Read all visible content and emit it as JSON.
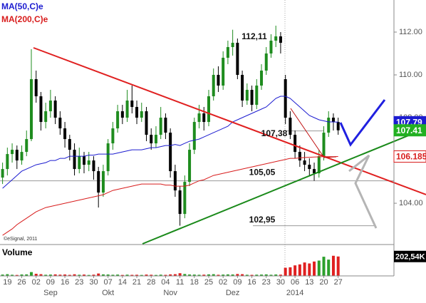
{
  "chart_data": {
    "type": "candlestick",
    "categories": [
      null,
      "19",
      null,
      null,
      "26",
      null,
      null,
      "02",
      null,
      null,
      "09",
      null,
      null,
      "16",
      null,
      null,
      "23",
      null,
      null,
      "30",
      null,
      null,
      "07",
      null,
      null,
      "14",
      null,
      null,
      "21",
      null,
      null,
      "28",
      null,
      null,
      "04",
      null,
      null,
      "11",
      null,
      null,
      "18",
      null,
      null,
      "25",
      null,
      null,
      "02",
      null,
      null,
      "09",
      null,
      null,
      "16",
      null,
      null,
      "23",
      null,
      null,
      "30",
      null,
      null,
      "06",
      null,
      null,
      "13",
      null,
      null,
      "20",
      null,
      null,
      "27"
    ],
    "months": [
      null,
      null,
      null,
      null,
      null,
      null,
      null,
      null,
      null,
      null,
      "Sep",
      null,
      null,
      null,
      null,
      null,
      null,
      null,
      null,
      null,
      null,
      null,
      "Okt",
      null,
      null,
      null,
      null,
      null,
      null,
      null,
      null,
      null,
      null,
      null,
      null,
      "Nov",
      null,
      null,
      null,
      null,
      null,
      null,
      null,
      null,
      null,
      null,
      null,
      null,
      "Dez",
      null,
      null,
      null,
      null,
      null,
      null,
      null,
      null,
      null,
      null,
      null,
      null,
      "2014",
      null,
      null,
      null,
      null,
      null,
      null,
      null,
      null,
      null
    ],
    "open": [
      105.2,
      105.6,
      106.3,
      106.5,
      106.0,
      106.4,
      107.0,
      109.8,
      109.0,
      107.8,
      108.3,
      108.8,
      108.0,
      107.5,
      107.0,
      106.5,
      105.6,
      106.2,
      105.8,
      106.0,
      105.5,
      104.5,
      105.5,
      106.8,
      107.5,
      108.3,
      108.0,
      108.8,
      108.5,
      108.0,
      108.3,
      107.2,
      106.8,
      107.2,
      108.0,
      107.3,
      105.5,
      104.6,
      103.5,
      105.0,
      106.5,
      107.8,
      108.2,
      107.8,
      109.0,
      110.0,
      109.5,
      110.8,
      111.3,
      111.5,
      110.0,
      108.8,
      109.3,
      108.6,
      109.5,
      110.2,
      111.0,
      111.6,
      111.8,
      109.8,
      108.0,
      107.2,
      106.4,
      106.0,
      105.8,
      105.6,
      105.4,
      106.2,
      107.3,
      108.0,
      107.8
    ],
    "high": [
      105.9,
      106.6,
      106.8,
      106.7,
      106.7,
      107.4,
      111.2,
      110.2,
      109.2,
      108.7,
      109.3,
      109.0,
      108.3,
      107.8,
      107.2,
      106.8,
      106.6,
      106.4,
      106.4,
      106.2,
      105.7,
      105.8,
      107.0,
      107.8,
      108.6,
      108.6,
      109.3,
      109.5,
      108.8,
      108.7,
      108.5,
      107.5,
      107.6,
      108.5,
      108.2,
      107.5,
      105.8,
      104.8,
      105.3,
      106.8,
      108.0,
      108.6,
      108.5,
      109.3,
      110.3,
      110.4,
      111.1,
      111.6,
      112.11,
      111.7,
      110.2,
      109.6,
      109.5,
      109.8,
      110.5,
      111.3,
      111.9,
      112.3,
      112.0,
      110.0,
      108.3,
      107.4,
      106.7,
      106.4,
      106.1,
      105.9,
      106.5,
      107.6,
      108.3,
      108.2,
      108.0
    ],
    "low": [
      104.9,
      105.3,
      105.9,
      105.6,
      105.8,
      106.2,
      106.9,
      108.7,
      107.4,
      107.5,
      108.0,
      107.7,
      107.2,
      106.6,
      106.0,
      105.3,
      105.4,
      105.4,
      105.5,
      105.1,
      103.8,
      104.3,
      105.3,
      106.5,
      107.3,
      107.7,
      107.8,
      108.2,
      107.7,
      107.8,
      106.9,
      106.5,
      106.6,
      107.0,
      107.0,
      105.2,
      104.3,
      102.95,
      103.3,
      104.8,
      106.3,
      107.5,
      107.4,
      107.6,
      108.8,
      109.2,
      109.3,
      110.5,
      110.9,
      109.8,
      108.5,
      108.6,
      108.3,
      108.4,
      109.3,
      110.0,
      110.8,
      111.3,
      111.0,
      107.7,
      107.0,
      106.1,
      105.7,
      105.5,
      105.3,
      105.05,
      105.2,
      106.0,
      107.1,
      107.4,
      107.2
    ],
    "close": [
      105.6,
      106.3,
      106.5,
      106.0,
      106.4,
      107.0,
      109.8,
      109.0,
      107.8,
      108.3,
      108.8,
      108.0,
      107.5,
      107.0,
      106.5,
      105.6,
      106.2,
      105.8,
      106.0,
      105.5,
      104.5,
      105.5,
      106.8,
      107.5,
      108.3,
      108.0,
      108.8,
      108.5,
      108.0,
      108.3,
      107.2,
      106.8,
      107.2,
      108.0,
      107.3,
      105.5,
      104.6,
      103.5,
      105.0,
      106.5,
      107.8,
      108.2,
      107.8,
      109.0,
      110.0,
      109.5,
      110.8,
      111.3,
      111.5,
      110.0,
      108.8,
      109.3,
      108.6,
      109.5,
      110.2,
      111.0,
      111.6,
      111.8,
      111.5,
      108.0,
      107.2,
      106.4,
      106.0,
      105.8,
      105.6,
      105.4,
      106.2,
      107.3,
      108.0,
      107.8,
      107.41
    ],
    "up_color": "#1e8c1e",
    "down_color": "#000000",
    "series": [
      {
        "name": "MA(50,C)e",
        "color": "#1c1cd0",
        "values": [
          104.7,
          104.9,
          105.1,
          105.3,
          105.5,
          105.6,
          105.7,
          105.8,
          105.85,
          105.9,
          106.0,
          106.0,
          106.1,
          106.1,
          106.2,
          106.2,
          106.2,
          106.2,
          106.25,
          106.25,
          106.3,
          106.3,
          106.3,
          106.3,
          106.35,
          106.4,
          106.45,
          106.5,
          106.5,
          106.5,
          106.55,
          106.6,
          106.6,
          106.65,
          106.7,
          106.7,
          106.75,
          106.7,
          106.8,
          106.9,
          106.95,
          107.0,
          107.1,
          107.2,
          107.3,
          107.4,
          107.5,
          107.6,
          107.8,
          107.9,
          108.0,
          108.1,
          108.2,
          108.3,
          108.4,
          108.5,
          108.7,
          108.9,
          109.0,
          109.0,
          108.9,
          108.7,
          108.5,
          108.3,
          108.1,
          108.0,
          107.9,
          107.85,
          107.8,
          107.8,
          107.79
        ]
      },
      {
        "name": "MA(200,C)e",
        "color": "#d81c1c",
        "values": [
          102.5,
          102.65,
          102.8,
          103.0,
          103.15,
          103.3,
          103.45,
          103.6,
          103.7,
          103.8,
          103.85,
          103.9,
          103.95,
          104.0,
          104.05,
          104.1,
          104.15,
          104.2,
          104.25,
          104.3,
          104.35,
          104.4,
          104.5,
          104.6,
          104.65,
          104.7,
          104.75,
          104.8,
          104.85,
          104.9,
          104.9,
          104.9,
          104.9,
          104.9,
          104.85,
          104.85,
          104.8,
          104.8,
          104.8,
          104.85,
          104.95,
          105.05,
          105.1,
          105.2,
          105.3,
          105.35,
          105.4,
          105.45,
          105.5,
          105.55,
          105.6,
          105.65,
          105.7,
          105.75,
          105.8,
          105.85,
          105.9,
          105.95,
          106.0,
          106.05,
          106.1,
          106.1,
          106.12,
          106.14,
          106.15,
          106.16,
          106.17,
          106.18,
          106.18,
          106.18,
          106.185
        ]
      }
    ],
    "ylim": [
      102.07,
      113.5
    ],
    "yticks": [
      {
        "value": 104,
        "label": "104.00"
      },
      {
        "value": 106,
        "label": "106.00"
      },
      {
        "value": 108,
        "label": "108.00"
      },
      {
        "value": 110,
        "label": "110.00"
      },
      {
        "value": 112,
        "label": "112.00"
      }
    ],
    "grid": false,
    "last_values": [
      {
        "value": 107.79,
        "color": "#1c1cd0"
      },
      {
        "value": 107.41,
        "color": "#22b022"
      },
      {
        "value": 106.185,
        "color": "#d81c1c"
      }
    ],
    "annotations": [
      {
        "value": 112.11,
        "label": "112,11"
      },
      {
        "value": 107.38,
        "label": "107,38"
      },
      {
        "value": 105.05,
        "label": "105,05"
      },
      {
        "value": 102.95,
        "label": "102,95"
      }
    ],
    "copyright": "©eSignal, 2011",
    "volume": {
      "title": "Volume",
      "up_color": "#2ca02c",
      "down_color": "#e02020",
      "ylim": [
        0,
        290
      ],
      "values": [
        14,
        18,
        12,
        10,
        15,
        16,
        40,
        22,
        18,
        12,
        14,
        16,
        13,
        15,
        11,
        17,
        12,
        14,
        10,
        13,
        25,
        16,
        15,
        12,
        14,
        10,
        13,
        11,
        12,
        10,
        14,
        12,
        10,
        13,
        11,
        16,
        18,
        28,
        20,
        15,
        14,
        12,
        13,
        16,
        18,
        12,
        14,
        16,
        15,
        20,
        18,
        12,
        11,
        13,
        14,
        16,
        12,
        15,
        13,
        85,
        90,
        110,
        120,
        140,
        130,
        150,
        160,
        200,
        170,
        210,
        202.54
      ],
      "last": {
        "value": 202.54,
        "label": "202,54K"
      }
    }
  }
}
